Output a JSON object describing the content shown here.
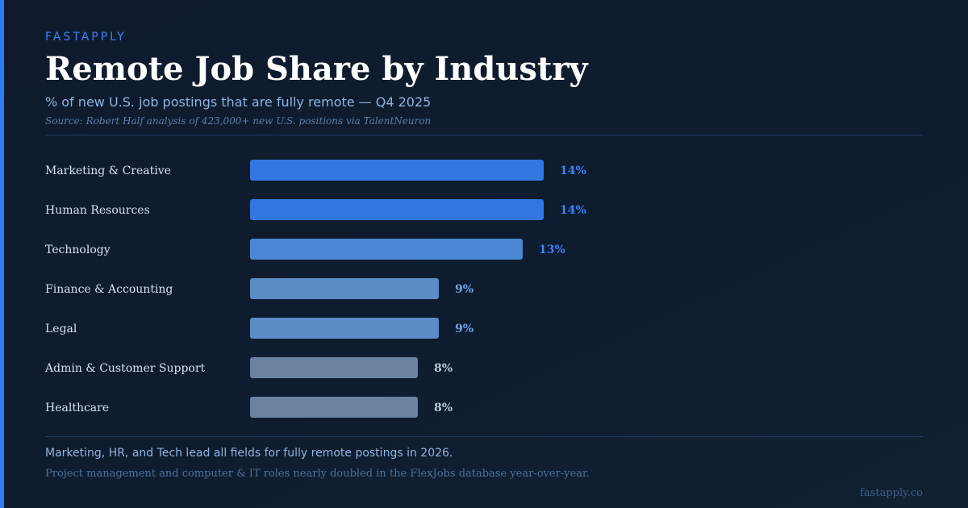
{
  "brand": "FASTAPPLY",
  "chart_data": {
    "type": "bar",
    "orientation": "horizontal",
    "title": "Remote Job Share by Industry",
    "subtitle": "% of new U.S. job postings that are fully remote — Q4 2025",
    "source": "Source: Robert Half analysis of 423,000+ new U.S. positions via TalentNeuron",
    "categories": [
      "Marketing & Creative",
      "Human Resources",
      "Technology",
      "Finance & Accounting",
      "Legal",
      "Admin & Customer Support",
      "Healthcare"
    ],
    "values": [
      14,
      14,
      13,
      9,
      9,
      8,
      8
    ],
    "value_labels": [
      "14%",
      "14%",
      "13%",
      "9%",
      "9%",
      "8%",
      "8%"
    ],
    "bar_colors": [
      "#3277e0",
      "#3277e0",
      "#4a86d4",
      "#5b8cc6",
      "#5b8cc6",
      "#6b83a1",
      "#6b83a1"
    ],
    "value_label_colors": [
      "#3b82f6",
      "#3b82f6",
      "#3b82f6",
      "#6fa3e8",
      "#6fa3e8",
      "#b8c8dc",
      "#b8c8dc"
    ],
    "xlim": [
      0,
      14
    ],
    "grid": false,
    "legend": "none",
    "xlabel": "",
    "ylabel": ""
  },
  "footnote": {
    "main": "Marketing, HR, and Tech lead all fields for fully remote postings in 2026.",
    "sub": "Project management and computer & IT roles nearly doubled in the FlexJobs database year-over-year."
  },
  "site": "fastapply.co",
  "colors": {
    "background": "#0f1b2d",
    "accent": "#2f7bf5",
    "title": "#ffffff",
    "category_label": "#d6e2f0"
  }
}
